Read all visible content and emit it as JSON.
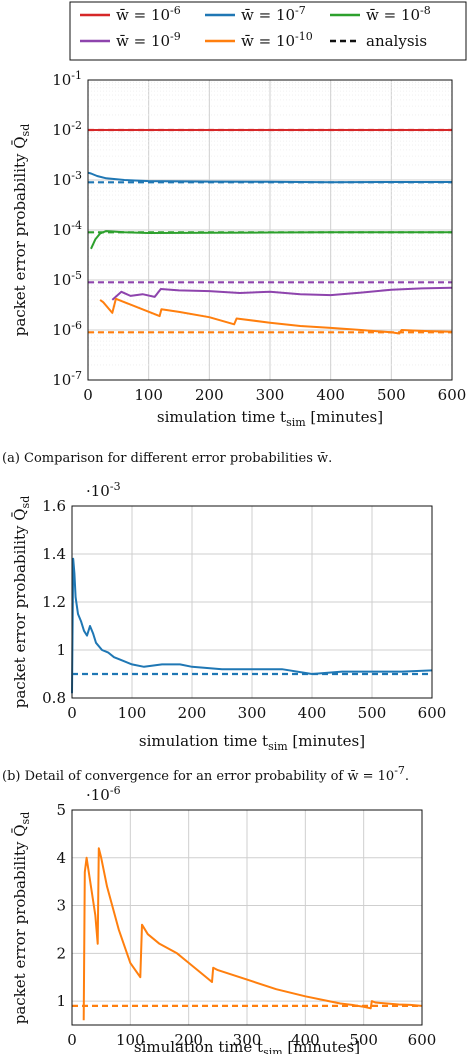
{
  "chart_data": [
    {
      "type": "line",
      "caption": "(a)  Comparison for different error probabilities w̄.",
      "xlabel": "simulation time t_sim [minutes]",
      "ylabel": "packet error probability Q̄_sd",
      "xlim": [
        0,
        600
      ],
      "ylim": [
        1e-07,
        0.1
      ],
      "yscale": "log",
      "xticks": [
        "0",
        "100",
        "200",
        "300",
        "400",
        "500",
        "600"
      ],
      "yticks": [
        "10^-7",
        "10^-6",
        "10^-5",
        "10^-4",
        "10^-3",
        "10^-2",
        "10^-1"
      ],
      "grid": true,
      "legend": {
        "placement": "top (above plot, framed)",
        "entries": [
          "w̄ = 10^-6",
          "w̄ = 10^-7",
          "w̄ = 10^-8",
          "w̄ = 10^-9",
          "w̄ = 10^-10",
          "analysis"
        ]
      },
      "series": [
        {
          "name": "w̄ = 10^-6",
          "color": "#d62728",
          "x": [
            0,
            20,
            100,
            200,
            300,
            400,
            500,
            600
          ],
          "y": [
            0.01,
            0.01,
            0.01,
            0.01,
            0.01,
            0.01,
            0.01,
            0.01
          ],
          "analysis": 0.01
        },
        {
          "name": "w̄ = 10^-7",
          "color": "#1f77b4",
          "x": [
            0,
            5,
            15,
            30,
            60,
            100,
            200,
            300,
            400,
            500,
            600
          ],
          "y": [
            0.0014,
            0.00135,
            0.0012,
            0.00108,
            0.001,
            0.00095,
            0.00093,
            0.00092,
            0.0009,
            0.00091,
            0.00091
          ],
          "analysis": 0.0009
        },
        {
          "name": "w̄ = 10^-8",
          "color": "#2ca02c",
          "x": [
            5,
            12,
            20,
            30,
            60,
            100,
            200,
            300,
            400,
            500,
            600
          ],
          "y": [
            4.2e-05,
            6.5e-05,
            8.5e-05,
            9.5e-05,
            9e-05,
            8.7e-05,
            8.8e-05,
            8.9e-05,
            9e-05,
            9e-05,
            9e-05
          ],
          "analysis": 9e-05
        },
        {
          "name": "w̄ = 10^-9",
          "color": "#8e44ad",
          "x": [
            40,
            55,
            70,
            90,
            110,
            120,
            150,
            200,
            250,
            300,
            350,
            400,
            450,
            500,
            550,
            600
          ],
          "y": [
            4e-06,
            5.8e-06,
            4.8e-06,
            5.2e-06,
            4.6e-06,
            6.6e-06,
            6.2e-06,
            6e-06,
            5.5e-06,
            5.8e-06,
            5.2e-06,
            5e-06,
            5.6e-06,
            6.4e-06,
            6.8e-06,
            7e-06
          ],
          "analysis": 9e-06
        },
        {
          "name": "w̄ = 10^-10",
          "color": "#ff7f0e",
          "x": [
            20,
            25,
            40,
            46,
            60,
            118,
            121,
            150,
            200,
            241,
            245,
            300,
            350,
            400,
            450,
            500,
            513,
            517,
            560,
            600
          ],
          "y": [
            4e-06,
            3.6e-06,
            2.2e-06,
            4.2e-06,
            3.6e-06,
            1.9e-06,
            2.6e-06,
            2.3e-06,
            1.8e-06,
            1.3e-06,
            1.7e-06,
            1.4e-06,
            1.2e-06,
            1.1e-06,
            1e-06,
            9e-07,
            8.5e-07,
            1e-06,
            9.5e-07,
            9.2e-07
          ],
          "analysis": 9e-07
        }
      ]
    },
    {
      "type": "line",
      "caption": "(b)  Detail of convergence for an error probability of w̄ = 10^-7.",
      "xlabel": "simulation time t_sim [minutes]",
      "ylabel": "packet error probability Q̄_sd",
      "multiplier": "·10^-3",
      "xlim": [
        0,
        600
      ],
      "ylim": [
        0.8,
        1.6
      ],
      "xticks": [
        "0",
        "100",
        "200",
        "300",
        "400",
        "500",
        "600"
      ],
      "yticks": [
        "0.8",
        "1",
        "1.2",
        "1.4",
        "1.6"
      ],
      "grid": true,
      "series": [
        {
          "name": "w̄ = 10^-7",
          "color": "#1f77b4",
          "x": [
            0,
            2,
            4,
            6,
            10,
            15,
            20,
            25,
            30,
            35,
            40,
            50,
            60,
            70,
            80,
            100,
            120,
            150,
            180,
            200,
            250,
            300,
            350,
            400,
            450,
            500,
            550,
            600
          ],
          "y": [
            0.82,
            1.38,
            1.32,
            1.22,
            1.15,
            1.12,
            1.08,
            1.06,
            1.1,
            1.07,
            1.03,
            1.0,
            0.99,
            0.97,
            0.96,
            0.94,
            0.93,
            0.94,
            0.94,
            0.93,
            0.92,
            0.92,
            0.92,
            0.9,
            0.91,
            0.91,
            0.91,
            0.915
          ],
          "analysis": 0.9
        }
      ]
    },
    {
      "type": "line",
      "caption": "",
      "xlabel": "simulation time t_sim [minutes]",
      "ylabel": "packet error probability Q̄_sd",
      "multiplier": "·10^-6",
      "xlim": [
        0,
        600
      ],
      "ylim": [
        0.5,
        5
      ],
      "xticks": [
        "0",
        "100",
        "200",
        "300",
        "400",
        "500",
        "600"
      ],
      "yticks": [
        "1",
        "2",
        "3",
        "4",
        "5"
      ],
      "grid": true,
      "series": [
        {
          "name": "w̄ = 10^-10",
          "color": "#ff7f0e",
          "x": [
            20,
            22,
            25,
            30,
            40,
            44,
            46,
            50,
            60,
            80,
            100,
            117,
            120,
            130,
            150,
            180,
            200,
            220,
            240,
            242,
            250,
            300,
            350,
            400,
            440,
            460,
            480,
            500,
            512,
            514,
            520,
            540,
            560,
            580,
            600
          ],
          "y": [
            0.6,
            3.7,
            4.0,
            3.6,
            2.8,
            2.2,
            4.2,
            4.0,
            3.4,
            2.5,
            1.8,
            1.5,
            2.6,
            2.4,
            2.2,
            2.0,
            1.8,
            1.6,
            1.4,
            1.7,
            1.65,
            1.45,
            1.25,
            1.1,
            1.0,
            0.95,
            0.92,
            0.88,
            0.85,
            1.0,
            0.97,
            0.95,
            0.93,
            0.92,
            0.9
          ],
          "analysis": 0.9
        }
      ]
    }
  ]
}
